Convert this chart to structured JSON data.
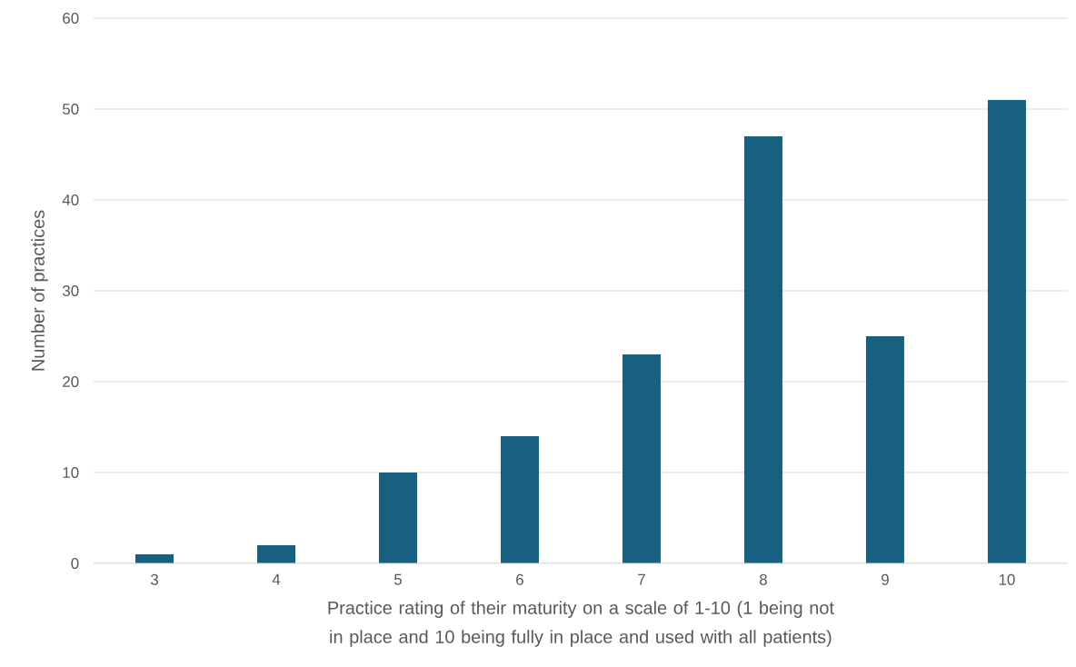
{
  "chart_data": {
    "type": "bar",
    "xlabel": "Practice rating of their maturity on a scale of 1-10 (1 being not in place and 10 being fully in place and used with all patients)",
    "ylabel": "Number of practices",
    "categories": [
      "3",
      "4",
      "5",
      "6",
      "7",
      "8",
      "9",
      "10"
    ],
    "values": [
      1,
      2,
      10,
      14,
      23,
      47,
      25,
      51
    ],
    "color": "#17607f",
    "ylim": [
      0,
      60
    ],
    "yticks": [
      0,
      10,
      20,
      30,
      40,
      50,
      60
    ],
    "grid": "y"
  }
}
